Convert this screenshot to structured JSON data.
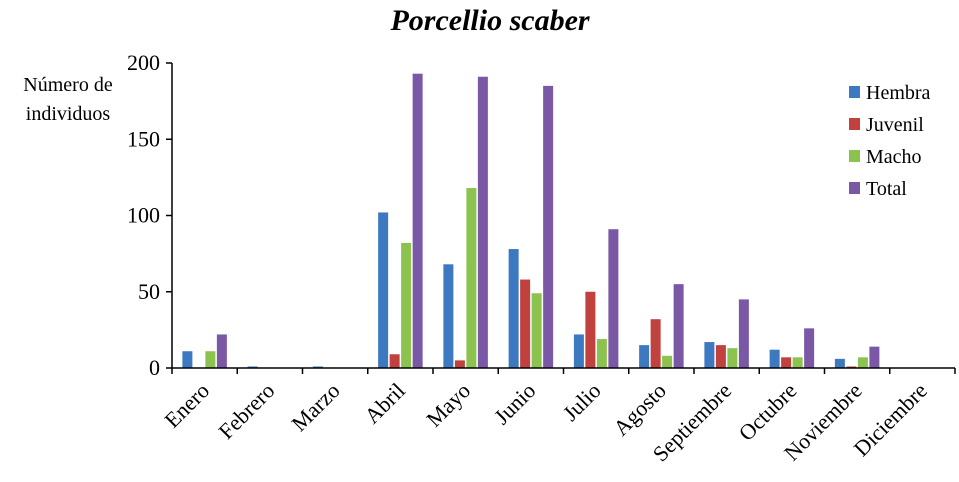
{
  "chart_data": {
    "type": "bar",
    "title": "Porcellio scaber",
    "ylabel_lines": [
      "Número de",
      "individuos"
    ],
    "xlabel": "",
    "ylim": [
      0,
      200
    ],
    "yticks": [
      0,
      50,
      100,
      150,
      200
    ],
    "grid": false,
    "legend_position": "top-right",
    "categories": [
      "Enero",
      "Febrero",
      "Marzo",
      "Abril",
      "Mayo",
      "Junio",
      "Julio",
      "Agosto",
      "Septiembre",
      "Octubre",
      "Noviembre",
      "Diciembre"
    ],
    "series": [
      {
        "name": "Hembra",
        "color": "#3c79c0",
        "values": [
          11,
          1,
          1,
          102,
          68,
          78,
          22,
          15,
          17,
          12,
          6,
          0
        ]
      },
      {
        "name": "Juvenil",
        "color": "#c0413d",
        "values": [
          0,
          0,
          0,
          9,
          5,
          58,
          50,
          32,
          15,
          7,
          1,
          0
        ]
      },
      {
        "name": "Macho",
        "color": "#8cc24e",
        "values": [
          11,
          0,
          0,
          82,
          118,
          49,
          19,
          8,
          13,
          7,
          7,
          0
        ]
      },
      {
        "name": "Total",
        "color": "#7b58a6",
        "values": [
          22,
          0,
          0,
          193,
          191,
          185,
          91,
          55,
          45,
          26,
          14,
          0
        ]
      }
    ]
  }
}
